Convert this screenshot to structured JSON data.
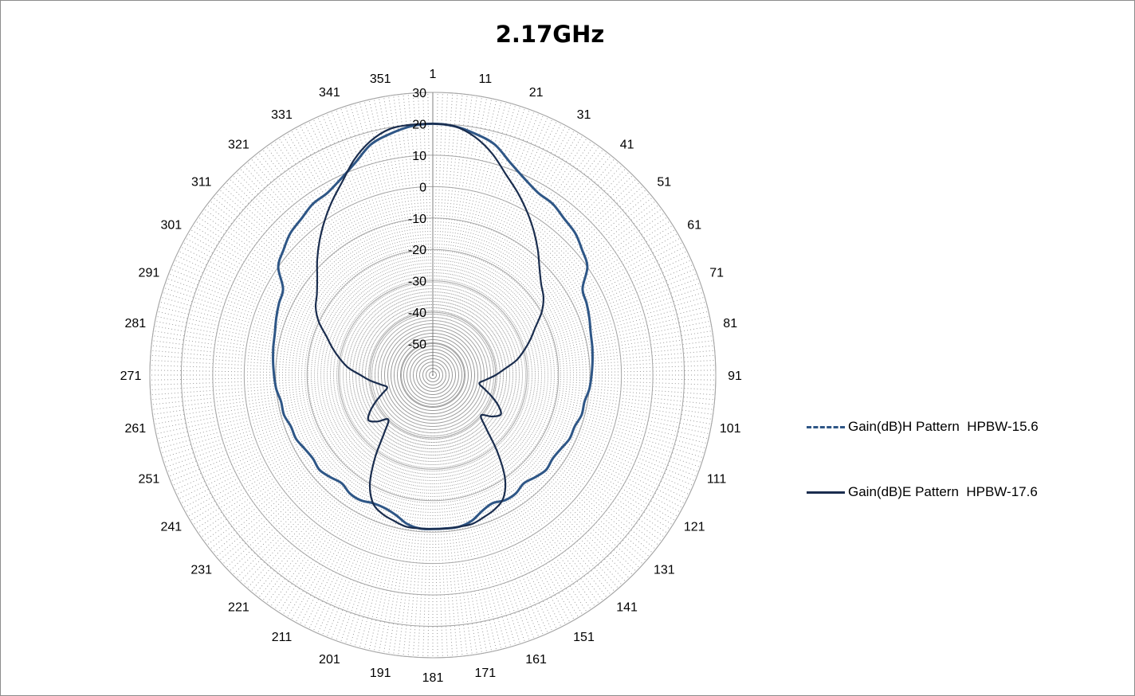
{
  "chart_data": {
    "type": "polar-line",
    "title": "2.17GHz",
    "angle_ticks": [
      "1",
      "11",
      "21",
      "31",
      "41",
      "51",
      "61",
      "71",
      "81",
      "91",
      "101",
      "111",
      "121",
      "131",
      "141",
      "151",
      "161",
      "171",
      "181",
      "191",
      "201",
      "211",
      "221",
      "231",
      "241",
      "251",
      "261",
      "271",
      "281",
      "291",
      "301",
      "311",
      "321",
      "331",
      "341",
      "351"
    ],
    "radial_ticks": [
      30,
      20,
      10,
      0,
      -10,
      -20,
      -30,
      -40,
      -50
    ],
    "r_range": [
      -60,
      30
    ],
    "angle_direction": "clockwise",
    "angle_zero": "top",
    "grid": true,
    "legend_position": "right",
    "series": [
      {
        "name": "Gain(dB)H Pattern  HPBW-15.6",
        "color": "#2e5686",
        "line_style": "dashed",
        "angles": [
          0,
          5,
          10,
          15,
          20,
          25,
          30,
          35,
          40,
          45,
          50,
          55,
          60,
          65,
          70,
          75,
          80,
          85,
          90,
          95,
          100,
          105,
          110,
          115,
          120,
          125,
          130,
          135,
          140,
          145,
          150,
          155,
          160,
          165,
          170,
          175,
          180,
          185,
          190,
          195,
          200,
          205,
          210,
          215,
          220,
          225,
          230,
          235,
          240,
          245,
          250,
          255,
          260,
          265,
          270,
          275,
          280,
          285,
          290,
          295,
          300,
          305,
          310,
          315,
          320,
          325,
          330,
          335,
          340,
          345,
          350,
          355
        ],
        "values": [
          20,
          19.5,
          18,
          16,
          12,
          9,
          7,
          6.5,
          5,
          4,
          2,
          0,
          -5,
          -6,
          -7,
          -8,
          -8.5,
          -9,
          -9.5,
          -10,
          -11,
          -11,
          -12,
          -12,
          -13,
          -13.5,
          -13,
          -14,
          -15,
          -14,
          -14,
          -15,
          -14,
          -12,
          -11,
          -11,
          -11,
          -11,
          -12,
          -14,
          -15,
          -15,
          -14,
          -14,
          -15,
          -14,
          -13,
          -13.5,
          -13,
          -12,
          -12,
          -11,
          -11,
          -10,
          -9.5,
          -9,
          -8.5,
          -8,
          -7,
          -6,
          -5,
          0,
          2,
          4,
          5,
          6.5,
          7,
          9,
          12,
          16,
          18,
          19.5
        ]
      },
      {
        "name": "Gain(dB)E Pattern  HPBW-17.6",
        "color": "#1a2d4e",
        "line_style": "solid",
        "angles": [
          0,
          5,
          10,
          15,
          20,
          25,
          30,
          35,
          40,
          45,
          50,
          55,
          60,
          65,
          70,
          75,
          80,
          85,
          90,
          95,
          100,
          105,
          110,
          115,
          120,
          125,
          130,
          135,
          140,
          145,
          150,
          155,
          160,
          165,
          170,
          175,
          180,
          185,
          190,
          195,
          200,
          205,
          210,
          215,
          220,
          225,
          230,
          235,
          240,
          245,
          250,
          255,
          260,
          265,
          270,
          275,
          280,
          285,
          290,
          295,
          300,
          305,
          310,
          315,
          320,
          325,
          330,
          335,
          340,
          345,
          350,
          355
        ],
        "values": [
          20,
          19.5,
          17,
          13,
          8,
          4,
          0,
          -4,
          -8,
          -12,
          -15,
          -17,
          -20,
          -24,
          -27,
          -30,
          -33,
          -37,
          -40,
          -43,
          -45,
          -43,
          -40,
          -37,
          -35,
          -37,
          -40,
          -36,
          -28,
          -20,
          -15,
          -13,
          -12,
          -11,
          -11,
          -11,
          -11,
          -11,
          -11,
          -12,
          -13,
          -15,
          -20,
          -28,
          -36,
          -40,
          -37,
          -35,
          -37,
          -40,
          -43,
          -45,
          -43,
          -40,
          -37,
          -33,
          -30,
          -27,
          -24,
          -20,
          -17,
          -15,
          -12,
          -8,
          -4,
          0,
          4,
          8,
          13,
          17,
          19.5,
          20
        ]
      }
    ]
  }
}
